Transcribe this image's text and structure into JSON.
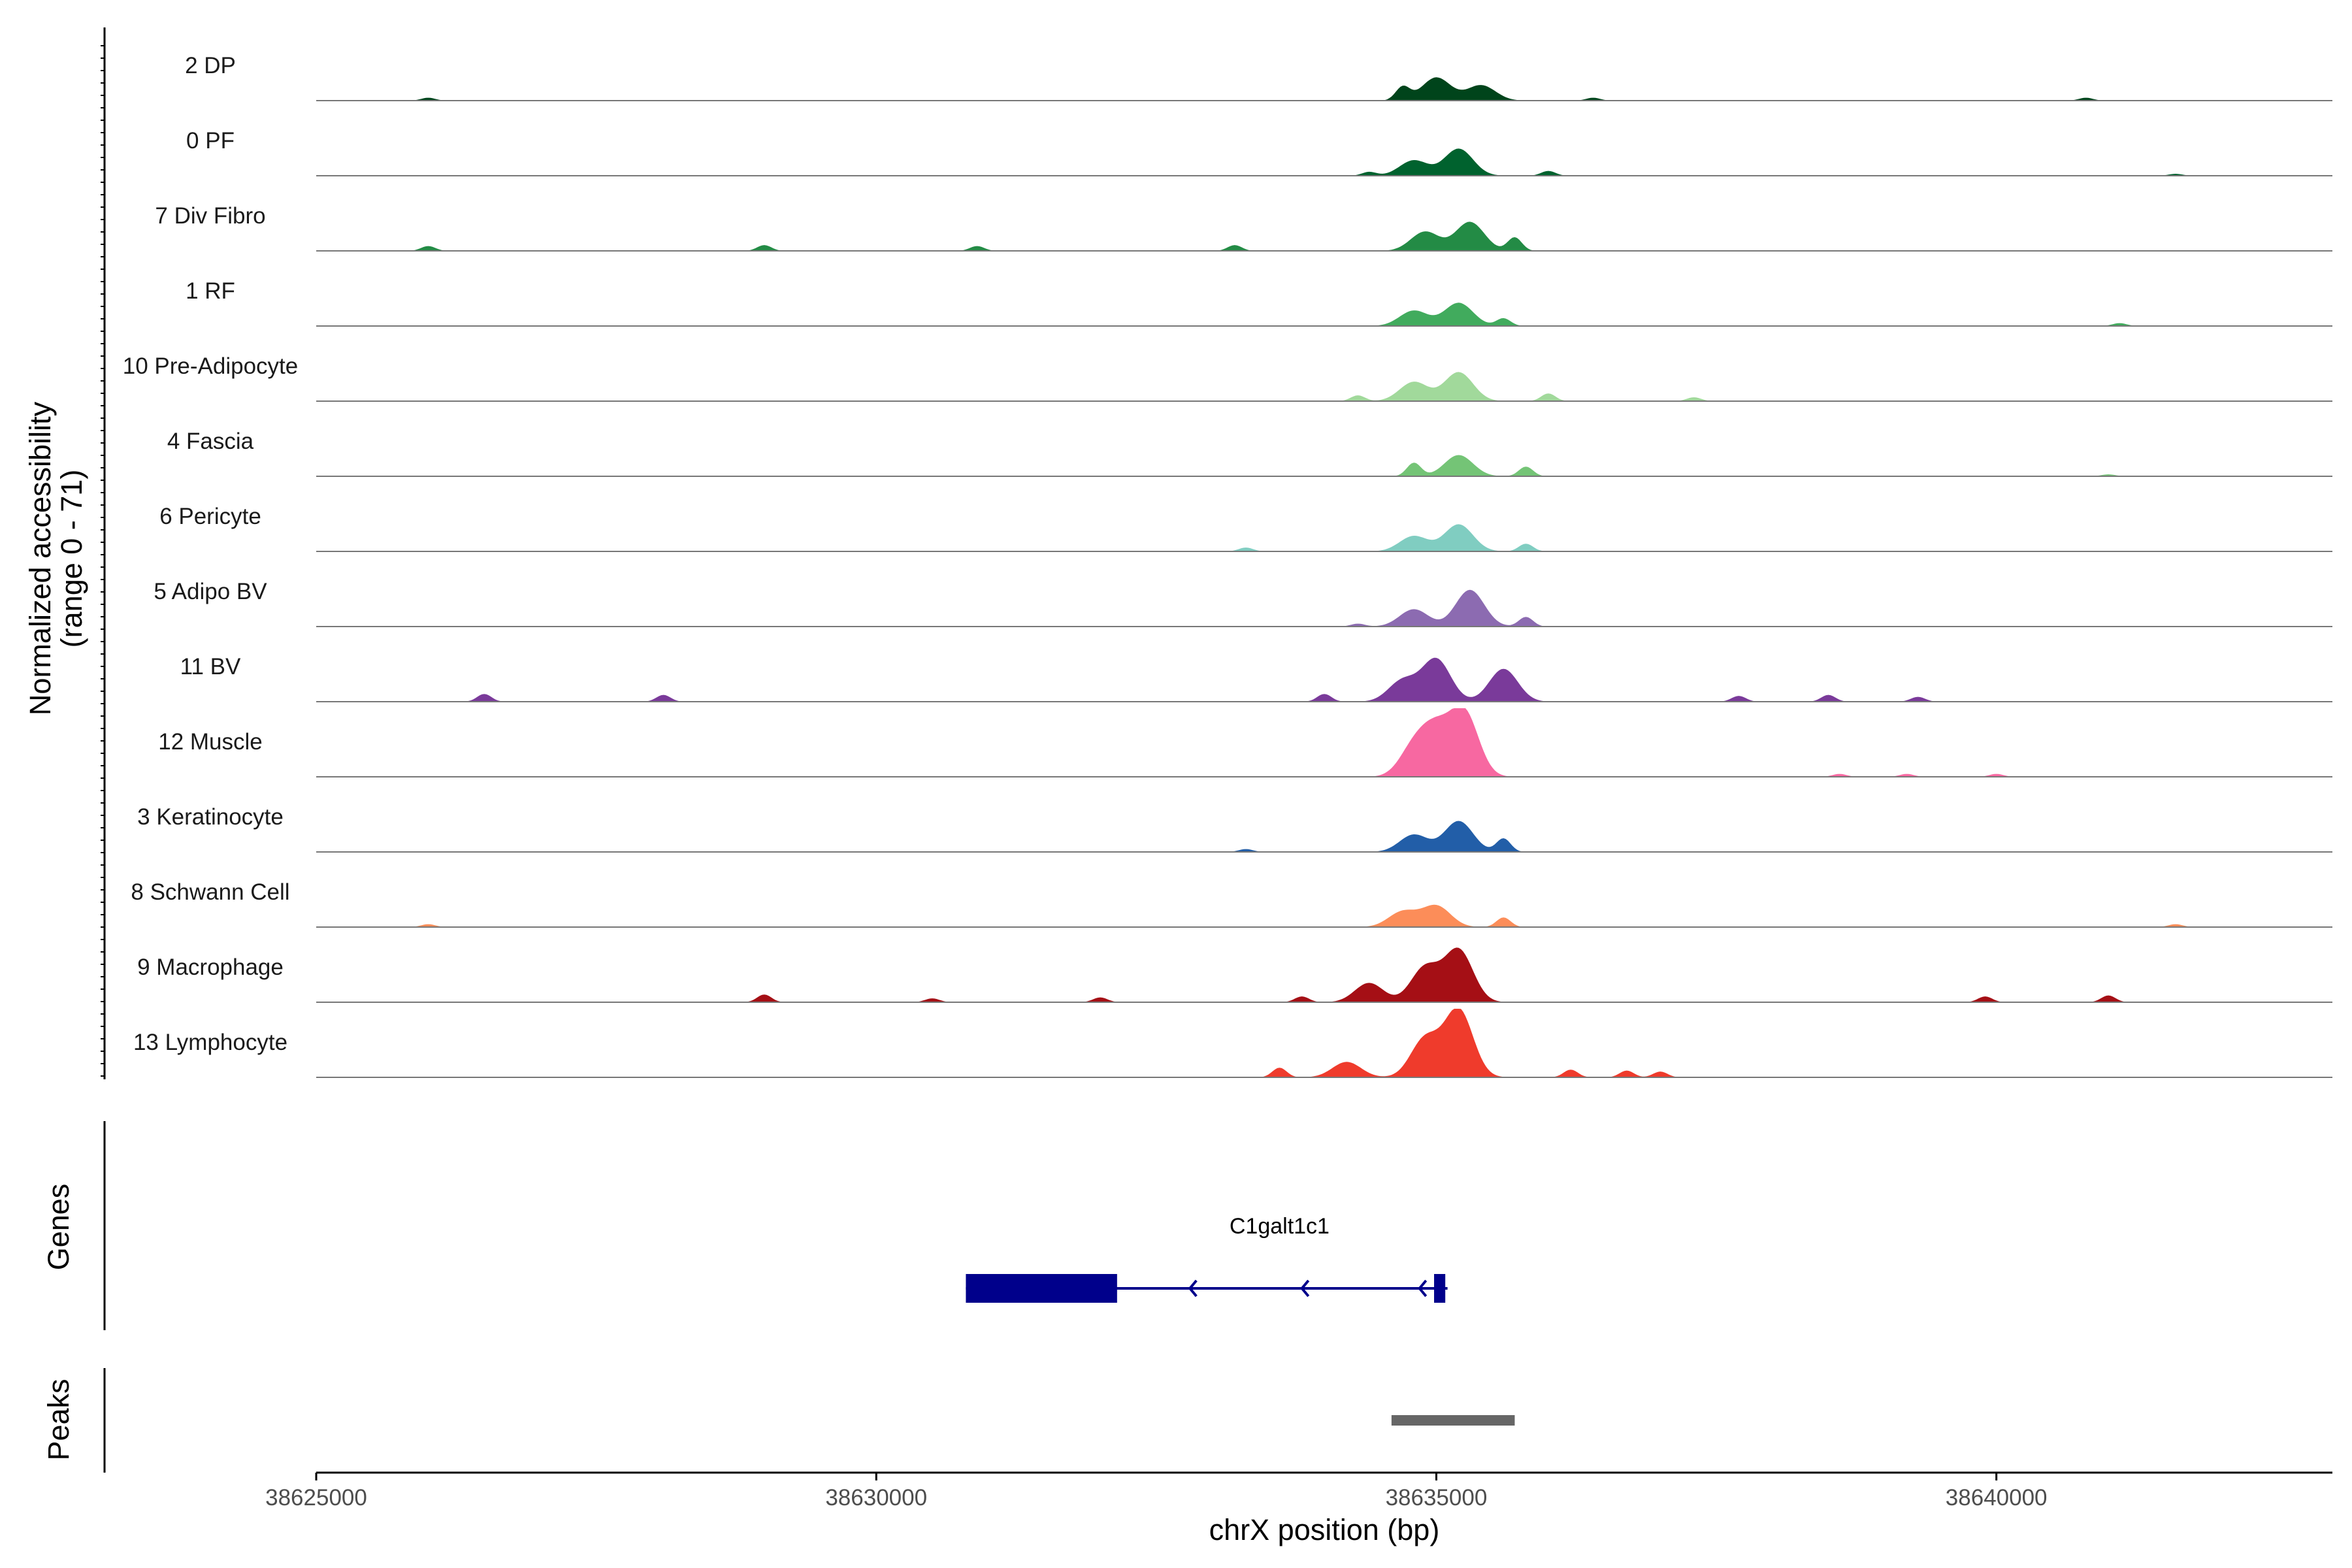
{
  "chart_data": {
    "type": "area",
    "title": "",
    "region": {
      "chrom": "chrX",
      "start": 38625000,
      "end": 38643000
    },
    "xlabel": "chrX position (bp)",
    "xticks": [
      38625000,
      38630000,
      38635000,
      38640000
    ],
    "tick_labels": [
      "38625000",
      "38630000",
      "38635000",
      "38640000"
    ],
    "ylabel_line1": "Normalized accessibility",
    "ylabel_line2": "(range 0 - 71)",
    "ylim": [
      0,
      71
    ],
    "tracks": [
      {
        "name": "2 DP",
        "color": "#00441b",
        "peaks": [
          [
            38635000,
            24
          ],
          [
            38634700,
            14
          ],
          [
            38635400,
            16
          ],
          [
            38626000,
            3
          ],
          [
            38636400,
            3
          ],
          [
            38640800,
            3
          ]
        ]
      },
      {
        "name": "0 PF",
        "color": "#00622e",
        "peaks": [
          [
            38635200,
            28
          ],
          [
            38634800,
            16
          ],
          [
            38634400,
            4
          ],
          [
            38636000,
            5
          ],
          [
            38641600,
            2
          ]
        ]
      },
      {
        "name": "7 Div Fibro",
        "color": "#238b45",
        "peaks": [
          [
            38635300,
            30
          ],
          [
            38634900,
            20
          ],
          [
            38635700,
            14
          ],
          [
            38629000,
            6
          ],
          [
            38630900,
            5
          ],
          [
            38633200,
            6
          ],
          [
            38626000,
            5
          ]
        ]
      },
      {
        "name": "1 RF",
        "color": "#41ab5d",
        "peaks": [
          [
            38635200,
            24
          ],
          [
            38634800,
            16
          ],
          [
            38635600,
            8
          ],
          [
            38641100,
            3
          ]
        ]
      },
      {
        "name": "10 Pre-Adipocyte",
        "color": "#a1d99b",
        "peaks": [
          [
            38635200,
            30
          ],
          [
            38634800,
            20
          ],
          [
            38634300,
            6
          ],
          [
            38636000,
            8
          ],
          [
            38637300,
            4
          ]
        ]
      },
      {
        "name": "4 Fascia",
        "color": "#74c476",
        "peaks": [
          [
            38635200,
            22
          ],
          [
            38634800,
            14
          ],
          [
            38635800,
            10
          ],
          [
            38641000,
            2
          ]
        ]
      },
      {
        "name": "6 Pericyte",
        "color": "#80cdc1",
        "peaks": [
          [
            38635200,
            28
          ],
          [
            38634800,
            16
          ],
          [
            38635800,
            8
          ],
          [
            38633300,
            4
          ]
        ]
      },
      {
        "name": "5 Adipo BV",
        "color": "#8c6bb1",
        "peaks": [
          [
            38635300,
            38
          ],
          [
            38634800,
            18
          ],
          [
            38635800,
            10
          ],
          [
            38634300,
            3
          ]
        ]
      },
      {
        "name": "11 BV",
        "color": "#7a3a9a",
        "peaks": [
          [
            38635000,
            44
          ],
          [
            38635600,
            34
          ],
          [
            38634700,
            22
          ],
          [
            38626500,
            8
          ],
          [
            38628100,
            7
          ],
          [
            38634000,
            8
          ],
          [
            38637700,
            6
          ],
          [
            38638500,
            7
          ],
          [
            38639300,
            5
          ]
        ]
      },
      {
        "name": "12 Muscle",
        "color": "#f768a1",
        "peaks": [
          [
            38635250,
            66
          ],
          [
            38634800,
            30
          ],
          [
            38635000,
            44
          ],
          [
            38638600,
            3
          ],
          [
            38639200,
            3
          ],
          [
            38640000,
            3
          ]
        ]
      },
      {
        "name": "3 Keratinocyte",
        "color": "#225ea8",
        "peaks": [
          [
            38635200,
            32
          ],
          [
            38634800,
            18
          ],
          [
            38635600,
            14
          ],
          [
            38633300,
            3
          ]
        ]
      },
      {
        "name": "8 Schwann Cell",
        "color": "#fc8d59",
        "peaks": [
          [
            38635000,
            22
          ],
          [
            38634700,
            16
          ],
          [
            38635600,
            10
          ],
          [
            38626000,
            3
          ],
          [
            38641600,
            3
          ]
        ]
      },
      {
        "name": "9 Macrophage",
        "color": "#a50f15",
        "peaks": [
          [
            38635200,
            54
          ],
          [
            38634900,
            36
          ],
          [
            38634400,
            20
          ],
          [
            38629000,
            8
          ],
          [
            38630500,
            4
          ],
          [
            38632000,
            5
          ],
          [
            38633800,
            6
          ],
          [
            38639900,
            6
          ],
          [
            38641000,
            7
          ]
        ]
      },
      {
        "name": "13 Lymphocyte",
        "color": "#ef3b2c",
        "peaks": [
          [
            38635200,
            70
          ],
          [
            38634900,
            40
          ],
          [
            38634200,
            16
          ],
          [
            38633600,
            10
          ],
          [
            38636200,
            8
          ],
          [
            38636700,
            7
          ],
          [
            38637000,
            6
          ]
        ]
      }
    ],
    "genes_label": "Genes",
    "gene": {
      "name": "C1galt1c1",
      "strand": "-",
      "start": 38630800,
      "end": 38635100,
      "color": "#00008b",
      "exons": [
        [
          38630800,
          38632150
        ],
        [
          38634980,
          38635080
        ]
      ],
      "arrows": [
        38632800,
        38633800,
        38634850
      ]
    },
    "peaks_label": "Peaks",
    "peaks": [
      [
        38634600,
        38635700
      ]
    ],
    "peak_color": "#666666"
  }
}
